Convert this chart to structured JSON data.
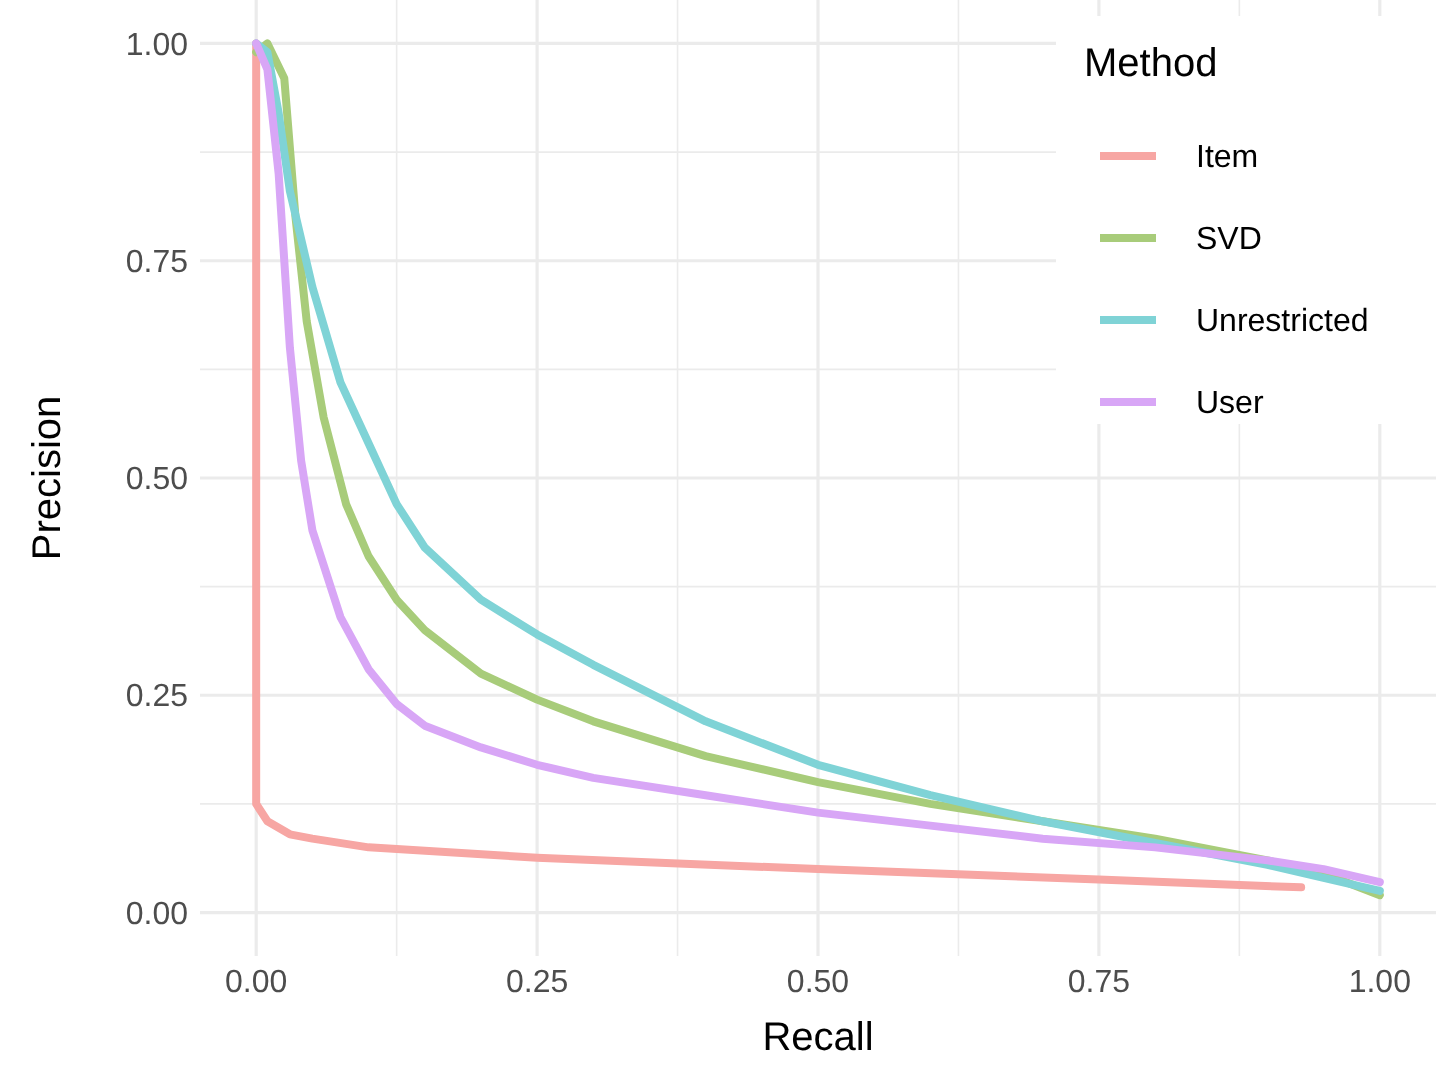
{
  "chart_data": {
    "type": "line",
    "xlabel": "Recall",
    "ylabel": "Precision",
    "legend_title": "Method",
    "legend": "top right",
    "grid": true,
    "line_style": "solid",
    "marker": "none",
    "xlim": [
      -0.05,
      1.05
    ],
    "ylim": [
      -0.05,
      1.05
    ],
    "xticks": [
      {
        "value": 0,
        "label": "0.00"
      },
      {
        "value": 0.125,
        "label": null
      },
      {
        "value": 0.25,
        "label": "0.25"
      },
      {
        "value": 0.375,
        "label": null
      },
      {
        "value": 0.5,
        "label": "0.50"
      },
      {
        "value": 0.625,
        "label": null
      },
      {
        "value": 0.75,
        "label": "0.75"
      },
      {
        "value": 0.875,
        "label": null
      },
      {
        "value": 1,
        "label": "1.00"
      }
    ],
    "yticks": [
      {
        "value": 0,
        "label": "0.00"
      },
      {
        "value": 0.125,
        "label": null
      },
      {
        "value": 0.25,
        "label": "0.25"
      },
      {
        "value": 0.375,
        "label": null
      },
      {
        "value": 0.5,
        "label": "0.50"
      },
      {
        "value": 0.625,
        "label": null
      },
      {
        "value": 0.75,
        "label": "0.75"
      },
      {
        "value": 0.875,
        "label": null
      },
      {
        "value": 1,
        "label": "1.00"
      }
    ],
    "series": [
      {
        "name": "Item",
        "color": "#f7a6a3",
        "x": [
          0,
          0,
          0.01,
          0.03,
          0.05,
          0.1,
          0.25,
          0.5,
          0.75,
          0.93
        ],
        "values": [
          1,
          0.125,
          0.105,
          0.09,
          0.085,
          0.075,
          0.063,
          0.05,
          0.038,
          0.029
        ]
      },
      {
        "name": "SVD",
        "color": "#a8cc7a",
        "x": [
          0,
          0.01,
          0.025,
          0.035,
          0.045,
          0.06,
          0.08,
          0.1,
          0.125,
          0.15,
          0.2,
          0.25,
          0.3,
          0.4,
          0.5,
          0.6,
          0.7,
          0.8,
          0.9,
          0.95,
          1
        ],
        "values": [
          0.99,
          1,
          0.96,
          0.8,
          0.68,
          0.57,
          0.47,
          0.41,
          0.36,
          0.325,
          0.275,
          0.245,
          0.22,
          0.18,
          0.15,
          0.125,
          0.105,
          0.085,
          0.06,
          0.045,
          0.02
        ]
      },
      {
        "name": "Unrestricted",
        "color": "#7fd3d6",
        "x": [
          0,
          0.01,
          0.02,
          0.03,
          0.05,
          0.075,
          0.1,
          0.125,
          0.15,
          0.2,
          0.25,
          0.3,
          0.4,
          0.5,
          0.6,
          0.7,
          0.8,
          0.9,
          0.95,
          1
        ],
        "values": [
          1,
          0.99,
          0.92,
          0.83,
          0.72,
          0.61,
          0.54,
          0.47,
          0.42,
          0.36,
          0.32,
          0.285,
          0.22,
          0.17,
          0.135,
          0.105,
          0.08,
          0.055,
          0.04,
          0.025
        ]
      },
      {
        "name": "User",
        "color": "#d8a6f6",
        "x": [
          0,
          0.01,
          0.02,
          0.03,
          0.04,
          0.05,
          0.075,
          0.1,
          0.125,
          0.15,
          0.2,
          0.25,
          0.3,
          0.4,
          0.5,
          0.6,
          0.7,
          0.8,
          0.9,
          0.95,
          1
        ],
        "values": [
          1,
          0.97,
          0.85,
          0.65,
          0.52,
          0.44,
          0.34,
          0.28,
          0.24,
          0.215,
          0.19,
          0.17,
          0.155,
          0.135,
          0.115,
          0.1,
          0.085,
          0.075,
          0.06,
          0.05,
          0.035
        ]
      }
    ]
  }
}
